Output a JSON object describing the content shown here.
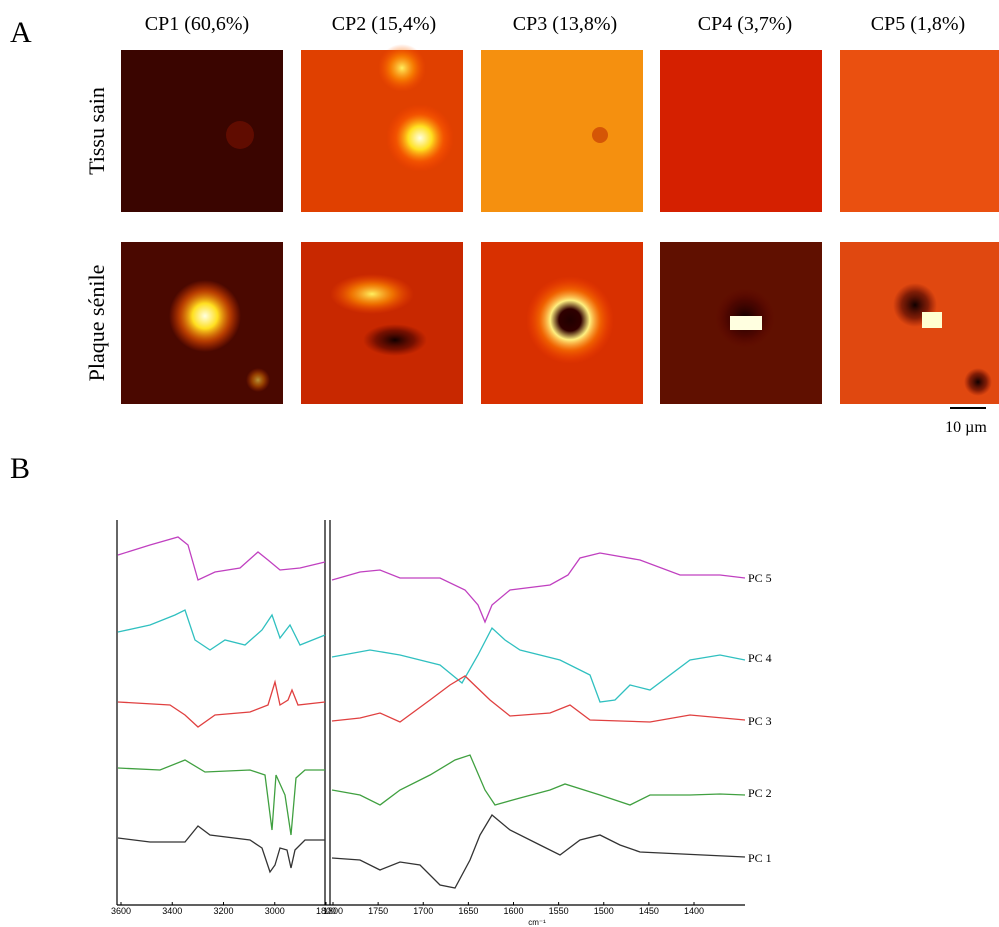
{
  "panel_a": {
    "label": "A",
    "columns": [
      "CP1 (60,6%)",
      "CP2 (15,4%)",
      "CP3 (13,8%)",
      "CP4 (3,7%)",
      "CP5 (1,8%)"
    ],
    "rows": [
      "Tissu sain",
      "Plaque sénile"
    ],
    "scale_bar": "10 µm"
  },
  "panel_b": {
    "label": "B",
    "left_ticks": [
      3600,
      3400,
      3200,
      3000,
      1800
    ],
    "right_ticks": [
      1800,
      1750,
      1700,
      1650,
      1600,
      1550,
      1500,
      1450,
      1400
    ],
    "x_unit": "cm⁻¹",
    "components": [
      "PC 5",
      "PC 4",
      "PC 3",
      "PC 2",
      "PC 1"
    ]
  }
}
